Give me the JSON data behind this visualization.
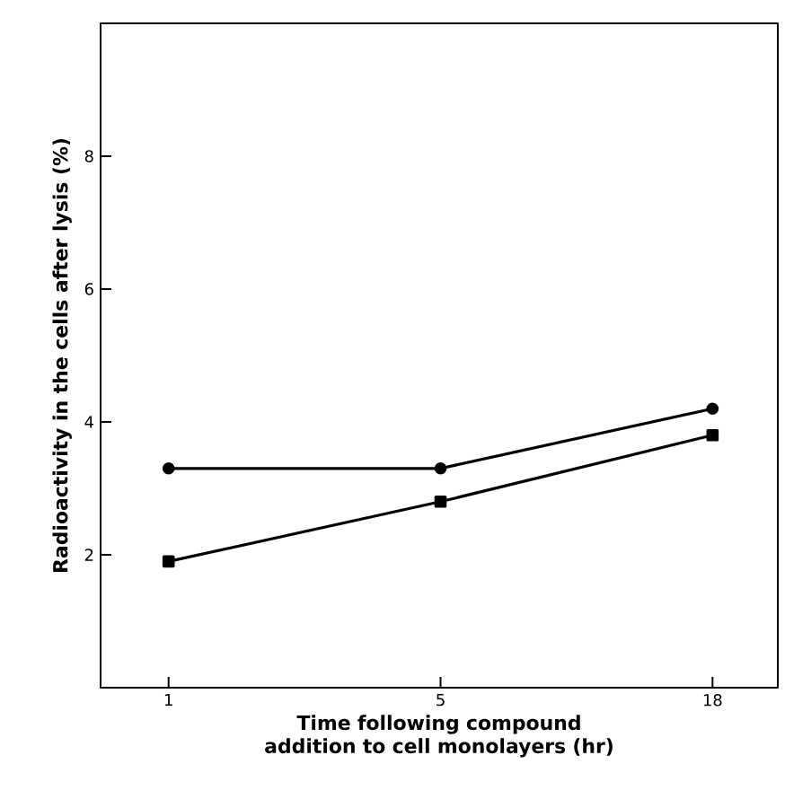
{
  "chart_data": {
    "type": "line",
    "xlabel": "Time following compound addition to cell monolayers (hr)",
    "ylabel": "Radioactivity in the cells after lysis (%)",
    "categories": [
      "1",
      "5",
      "18"
    ],
    "series": [
      {
        "color": "#000000",
        "marker": "circle",
        "values": [
          3.3,
          3.3,
          4.2
        ]
      },
      {
        "color": "#000000",
        "marker": "square",
        "values": [
          1.9,
          2.8,
          3.8
        ]
      }
    ],
    "ylim": [
      0,
      10
    ],
    "yticks": [
      2,
      4,
      6,
      8
    ]
  }
}
